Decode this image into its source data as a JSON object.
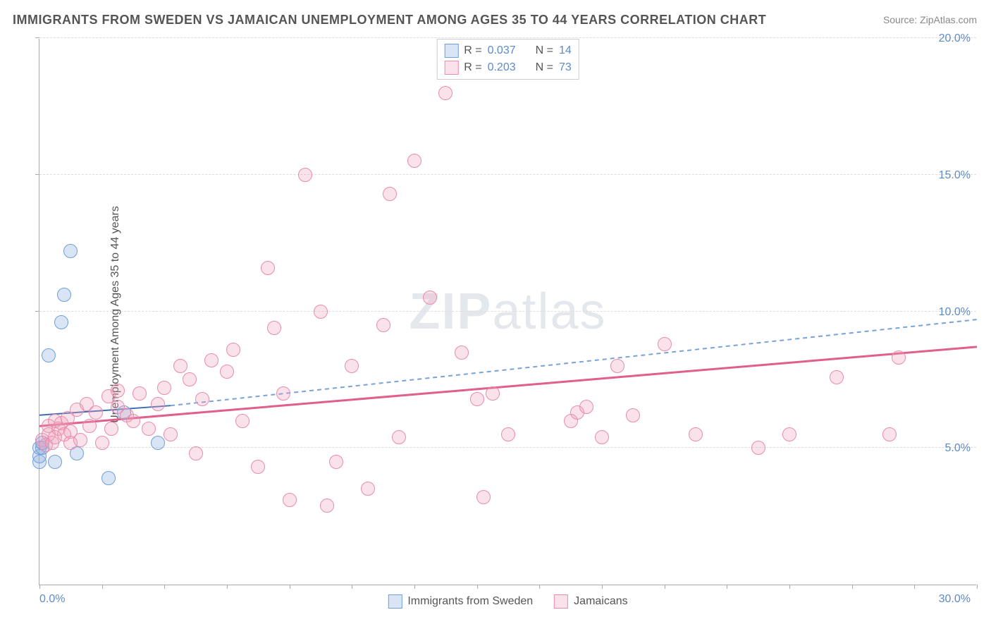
{
  "title": "IMMIGRANTS FROM SWEDEN VS JAMAICAN UNEMPLOYMENT AMONG AGES 35 TO 44 YEARS CORRELATION CHART",
  "source": "Source: ZipAtlas.com",
  "y_axis_label": "Unemployment Among Ages 35 to 44 years",
  "watermark_bold": "ZIP",
  "watermark_rest": "atlas",
  "chart": {
    "type": "scatter",
    "background_color": "#ffffff",
    "grid_color": "#dddddd",
    "axis_color": "#aaaaaa",
    "tick_label_color": "#5b8bc9",
    "text_color": "#555555",
    "xlim": [
      0,
      30
    ],
    "ylim": [
      0,
      20
    ],
    "x_ticks": [
      0,
      2,
      4,
      6,
      8,
      10,
      12,
      14,
      16,
      18,
      20,
      22,
      24,
      26,
      28,
      30
    ],
    "x_tick_labels": {
      "0": "0.0%",
      "30": "30.0%"
    },
    "y_ticks": [
      5,
      10,
      15,
      20
    ],
    "y_tick_labels": {
      "5": "5.0%",
      "10": "10.0%",
      "15": "15.0%",
      "20": "20.0%"
    },
    "marker_radius": 10,
    "marker_stroke_width": 1.5,
    "series": [
      {
        "id": "sweden",
        "label": "Immigrants from Sweden",
        "fill_color": "rgba(145,180,225,0.35)",
        "stroke_color": "#6f9fd8",
        "r_value": "0.037",
        "n_value": "14",
        "trend": {
          "x1": 0,
          "y1": 6.2,
          "x2": 4.2,
          "y2": 6.55,
          "extend_x2": 30,
          "extend_y2": 9.7,
          "solid_color": "#3e6db3",
          "dash_color": "#7aa2d6",
          "width": 2
        },
        "points": [
          [
            0.0,
            4.5
          ],
          [
            0.0,
            4.7
          ],
          [
            0.0,
            5.0
          ],
          [
            0.1,
            5.0
          ],
          [
            0.1,
            5.2
          ],
          [
            0.3,
            8.4
          ],
          [
            0.5,
            4.5
          ],
          [
            0.7,
            9.6
          ],
          [
            0.8,
            10.6
          ],
          [
            1.0,
            12.2
          ],
          [
            1.2,
            4.8
          ],
          [
            2.2,
            3.9
          ],
          [
            2.7,
            6.3
          ],
          [
            3.8,
            5.2
          ]
        ]
      },
      {
        "id": "jamaicans",
        "label": "Jamaicans",
        "fill_color": "rgba(240,160,185,0.30)",
        "stroke_color": "#e98bad",
        "r_value": "0.203",
        "n_value": "73",
        "trend": {
          "x1": 0,
          "y1": 5.8,
          "x2": 30,
          "y2": 8.7,
          "solid_color": "#e05f8b",
          "width": 3
        },
        "points": [
          [
            0.1,
            5.3
          ],
          [
            0.2,
            5.1
          ],
          [
            0.3,
            5.8
          ],
          [
            0.3,
            5.5
          ],
          [
            0.4,
            5.2
          ],
          [
            0.5,
            6.0
          ],
          [
            0.5,
            5.4
          ],
          [
            0.6,
            5.7
          ],
          [
            0.7,
            5.9
          ],
          [
            0.8,
            5.5
          ],
          [
            0.9,
            6.1
          ],
          [
            1.0,
            5.6
          ],
          [
            1.0,
            5.2
          ],
          [
            1.2,
            6.4
          ],
          [
            1.3,
            5.3
          ],
          [
            1.5,
            6.6
          ],
          [
            1.6,
            5.8
          ],
          [
            1.8,
            6.3
          ],
          [
            2.0,
            5.2
          ],
          [
            2.2,
            6.9
          ],
          [
            2.3,
            5.7
          ],
          [
            2.5,
            6.5
          ],
          [
            2.5,
            7.1
          ],
          [
            2.8,
            6.2
          ],
          [
            3.0,
            6.0
          ],
          [
            3.2,
            7.0
          ],
          [
            3.5,
            5.7
          ],
          [
            3.8,
            6.6
          ],
          [
            4.0,
            7.2
          ],
          [
            4.2,
            5.5
          ],
          [
            4.5,
            8.0
          ],
          [
            4.8,
            7.5
          ],
          [
            5.0,
            4.8
          ],
          [
            5.2,
            6.8
          ],
          [
            5.5,
            8.2
          ],
          [
            6.0,
            7.8
          ],
          [
            6.2,
            8.6
          ],
          [
            6.5,
            6.0
          ],
          [
            7.0,
            4.3
          ],
          [
            7.3,
            11.6
          ],
          [
            7.5,
            9.4
          ],
          [
            7.8,
            7.0
          ],
          [
            8.0,
            3.1
          ],
          [
            8.5,
            15.0
          ],
          [
            9.0,
            10.0
          ],
          [
            9.2,
            2.9
          ],
          [
            9.5,
            4.5
          ],
          [
            10.0,
            8.0
          ],
          [
            10.5,
            3.5
          ],
          [
            11.0,
            9.5
          ],
          [
            11.2,
            14.3
          ],
          [
            11.5,
            5.4
          ],
          [
            12.0,
            15.5
          ],
          [
            12.5,
            10.5
          ],
          [
            13.0,
            18.0
          ],
          [
            13.5,
            8.5
          ],
          [
            14.0,
            6.8
          ],
          [
            14.2,
            3.2
          ],
          [
            14.5,
            7.0
          ],
          [
            15.0,
            5.5
          ],
          [
            17.0,
            6.0
          ],
          [
            17.2,
            6.3
          ],
          [
            17.5,
            6.5
          ],
          [
            18.0,
            5.4
          ],
          [
            18.5,
            8.0
          ],
          [
            19.0,
            6.2
          ],
          [
            20.0,
            8.8
          ],
          [
            21.0,
            5.5
          ],
          [
            23.0,
            5.0
          ],
          [
            24.0,
            5.5
          ],
          [
            25.5,
            7.6
          ],
          [
            27.2,
            5.5
          ],
          [
            27.5,
            8.3
          ]
        ]
      }
    ],
    "legend_top": {
      "r_label": "R =",
      "n_label": "N ="
    }
  }
}
